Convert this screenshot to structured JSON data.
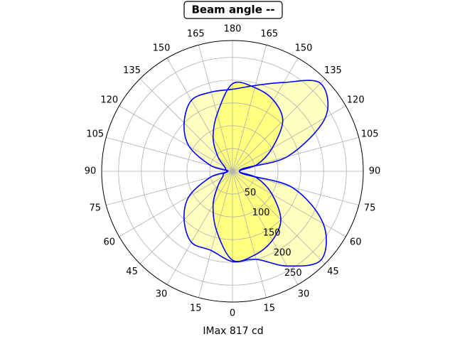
{
  "chart_data": {
    "type": "polar",
    "title": "Beam angle --",
    "xlabel": "IMax 817 cd",
    "theta_zero": "bottom",
    "rlim": [
      0,
      287
    ],
    "rticks": [
      50,
      100,
      150,
      200,
      250
    ],
    "thetaticks": [
      0,
      15,
      30,
      45,
      60,
      75,
      90,
      105,
      120,
      135,
      150,
      165,
      180,
      {
        "value": 195,
        "label": "165"
      },
      {
        "value": 210,
        "label": "150"
      },
      {
        "value": 225,
        "label": "135"
      },
      {
        "value": 240,
        "label": "120"
      },
      {
        "value": 255,
        "label": "105"
      },
      {
        "value": 270,
        "label": "90"
      },
      {
        "value": 285,
        "label": "75"
      },
      {
        "value": 300,
        "label": "60"
      },
      {
        "value": 315,
        "label": "45"
      },
      {
        "value": 330,
        "label": "30"
      },
      {
        "value": 345,
        "label": "15"
      }
    ],
    "grid": true,
    "theta": [
      0,
      15,
      30,
      45,
      60,
      75,
      90,
      105,
      120,
      135,
      150,
      165,
      180,
      195,
      210,
      225,
      240,
      255,
      270,
      285,
      300,
      315,
      330,
      345
    ],
    "series": [
      {
        "color": "#0000ff",
        "fill": "#ffffc0",
        "values": [
          198,
          200,
          240,
          275,
          230,
          135,
          15,
          125,
          235,
          273,
          225,
          195,
          180,
          180,
          180,
          150,
          110,
          50,
          12,
          50,
          110,
          150,
          180,
          180
        ]
      },
      {
        "color": "#0000ff",
        "fill": "#ffff80",
        "values": [
          195,
          190,
          175,
          150,
          100,
          55,
          15,
          55,
          100,
          156,
          180,
          190,
          192,
          130,
          85,
          45,
          20,
          15,
          10,
          20,
          25,
          45,
          85,
          135
        ]
      }
    ]
  }
}
